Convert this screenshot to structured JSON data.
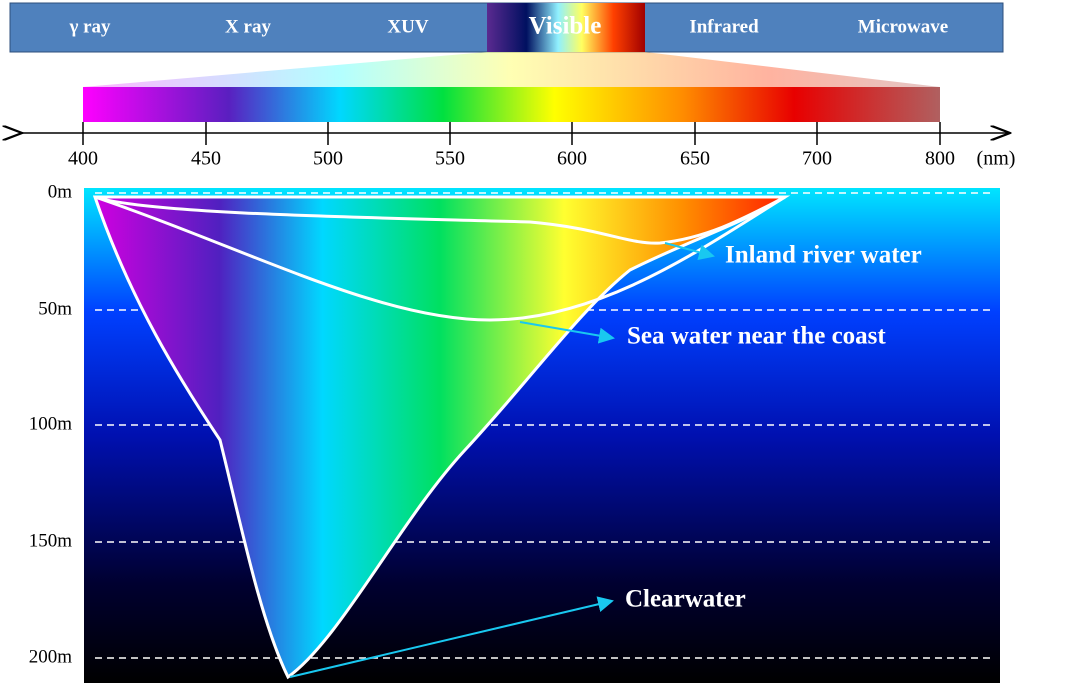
{
  "spectrum_bands": [
    "γ ray",
    "X ray",
    "XUV",
    "Visible",
    "Infrared",
    "Microwave"
  ],
  "wavelength_axis": {
    "ticks": [
      "400",
      "450",
      "500",
      "550",
      "600",
      "650",
      "700",
      "800"
    ],
    "unit": "(nm)"
  },
  "depth_axis": {
    "ticks": [
      "0m",
      "50m",
      "100m",
      "150m",
      "200m"
    ]
  },
  "annotations": [
    "Inland river water",
    "Sea water near the coast",
    "Clearwater"
  ]
}
